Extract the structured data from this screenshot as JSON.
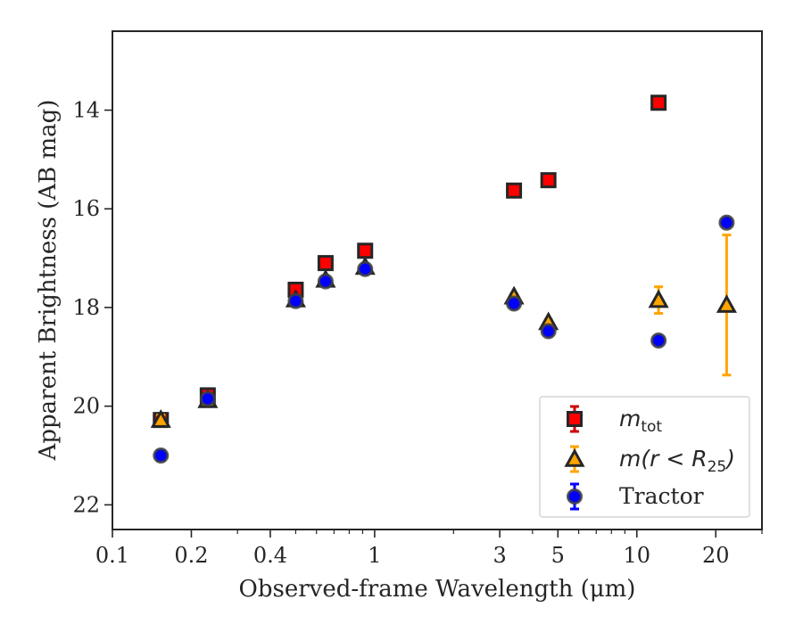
{
  "chart_data": {
    "type": "scatter",
    "title": "",
    "xlabel": "Observed-frame Wavelength (μm)",
    "ylabel": "Apparent Brightness (AB mag)",
    "xscale": "log",
    "xlim": [
      0.1,
      30
    ],
    "ylim": [
      22.5,
      12.4
    ],
    "y_inverted": true,
    "xticks": [
      0.1,
      0.2,
      0.4,
      1,
      3,
      5,
      10,
      20
    ],
    "xtick_labels": [
      "0.1",
      "0.2",
      "0.4",
      "1",
      "3",
      "5",
      "10",
      "20"
    ],
    "yticks": [
      14,
      16,
      18,
      20,
      22
    ],
    "ytick_labels": [
      "14",
      "16",
      "18",
      "20",
      "22"
    ],
    "grid": false,
    "legend_position": "bottom-right",
    "series": [
      {
        "label_main": "m",
        "label_sub": "tot",
        "label_tail": "",
        "marker": "square",
        "color": "#ff0000",
        "edge_color": "#262626",
        "error_color": "#cc0000",
        "points": [
          {
            "x": 0.153,
            "y": 20.28,
            "err": 0.1
          },
          {
            "x": 0.231,
            "y": 19.78,
            "err": 0.1
          },
          {
            "x": 0.5,
            "y": 17.64,
            "err": 0.04
          },
          {
            "x": 0.65,
            "y": 17.1,
            "err": 0.04
          },
          {
            "x": 0.92,
            "y": 16.85,
            "err": 0.04
          },
          {
            "x": 3.4,
            "y": 15.63,
            "err": 0.03
          },
          {
            "x": 4.6,
            "y": 15.42,
            "err": 0.03
          },
          {
            "x": 12.1,
            "y": 13.85,
            "err": 0.03
          }
        ]
      },
      {
        "label_main": "m(r < R",
        "label_sub": "25",
        "label_tail": ")",
        "marker": "triangle",
        "color": "#ffa500",
        "edge_color": "#262626",
        "error_color": "#ffa500",
        "points": [
          {
            "x": 0.153,
            "y": 20.28,
            "err": 0.1
          },
          {
            "x": 0.231,
            "y": 19.88,
            "err": 0.1
          },
          {
            "x": 0.5,
            "y": 17.84,
            "err": 0.05
          },
          {
            "x": 0.65,
            "y": 17.44,
            "err": 0.05
          },
          {
            "x": 0.92,
            "y": 17.18,
            "err": 0.05
          },
          {
            "x": 3.4,
            "y": 17.78,
            "err": 0.05
          },
          {
            "x": 4.6,
            "y": 18.3,
            "err": 0.05
          },
          {
            "x": 12.1,
            "y": 17.85,
            "err": 0.27
          },
          {
            "x": 22.0,
            "y": 17.95,
            "err": 1.42
          }
        ]
      },
      {
        "label_main": "Tractor",
        "label_sub": "",
        "label_tail": "",
        "marker": "circle",
        "color": "#0000ff",
        "edge_color": "#404040",
        "error_color": "#0000ff",
        "points": [
          {
            "x": 0.153,
            "y": 21.0,
            "err": 0.1
          },
          {
            "x": 0.231,
            "y": 19.85,
            "err": 0.08
          },
          {
            "x": 0.5,
            "y": 17.87,
            "err": 0.05
          },
          {
            "x": 0.65,
            "y": 17.47,
            "err": 0.05
          },
          {
            "x": 0.92,
            "y": 17.22,
            "err": 0.05
          },
          {
            "x": 3.4,
            "y": 17.92,
            "err": 0.05
          },
          {
            "x": 4.6,
            "y": 18.48,
            "err": 0.05
          },
          {
            "x": 12.1,
            "y": 18.67,
            "err": 0.05
          },
          {
            "x": 22.0,
            "y": 16.28,
            "err": 0.05
          }
        ]
      }
    ]
  }
}
